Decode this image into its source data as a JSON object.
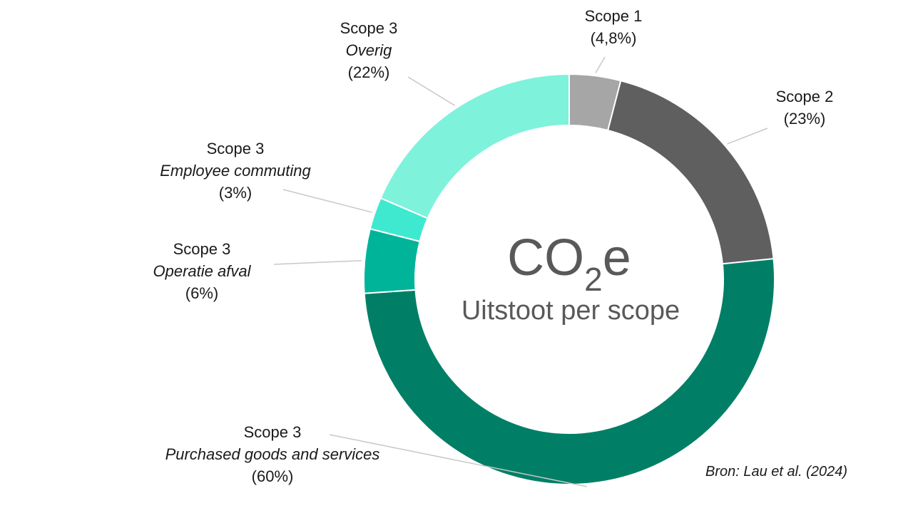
{
  "center": {
    "title_main": "CO",
    "title_sub": "2",
    "title_end": "e",
    "subtitle": "Uitstoot per scope"
  },
  "source": "Bron: Lau et al. (2024)",
  "chart_data": {
    "type": "pie",
    "variant": "donut",
    "title": "CO2e",
    "subtitle": "Uitstoot per scope",
    "unit": "%",
    "start_angle": "12 o'clock",
    "direction": "clockwise",
    "slices": [
      {
        "scope": "Scope 1",
        "category": "",
        "label_value": "(4,8%)",
        "value": 4.8,
        "color": "#a6a6a6",
        "label_position": "top-right"
      },
      {
        "scope": "Scope 2",
        "category": "",
        "label_value": "(23%)",
        "value": 23,
        "color": "#5f5f5f",
        "label_position": "right"
      },
      {
        "scope": "Scope 3",
        "category": "Purchased goods and services",
        "label_value": "(60%)",
        "value": 60,
        "color": "#007f66",
        "label_position": "bottom-left"
      },
      {
        "scope": "Scope 3",
        "category": "Operatie afval",
        "label_value": "(6%)",
        "value": 6,
        "color": "#00b49a",
        "label_position": "left"
      },
      {
        "scope": "Scope 3",
        "category": "Employee commuting",
        "label_value": "(3%)",
        "value": 3,
        "color": "#3fe9d0",
        "label_position": "left"
      },
      {
        "scope": "Scope 3",
        "category": "Overig",
        "label_value": "(22%)",
        "value": 22,
        "color": "#7ff2dc",
        "label_position": "top-left"
      }
    ]
  }
}
